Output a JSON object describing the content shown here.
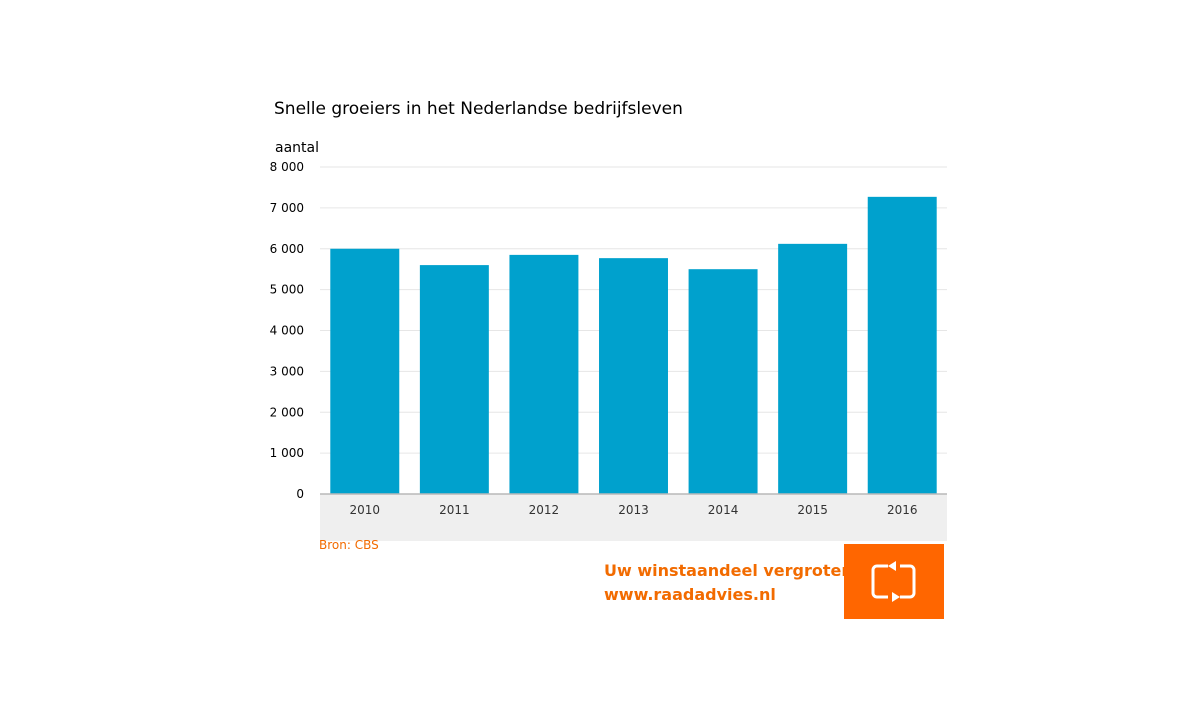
{
  "chart_data": {
    "type": "bar",
    "title": "Snelle groeiers in het Nederlandse bedrijfsleven",
    "ylabel": "aantal",
    "xlabel": "",
    "categories": [
      "2010",
      "2011",
      "2012",
      "2013",
      "2014",
      "2015",
      "2016"
    ],
    "values": [
      6000,
      5600,
      5850,
      5770,
      5500,
      6120,
      7270
    ],
    "ylim": [
      0,
      8000
    ],
    "yticks": [
      0,
      1000,
      2000,
      3000,
      4000,
      5000,
      6000,
      7000,
      8000
    ],
    "ytick_labels": [
      "0",
      "1 000",
      "2 000",
      "3 000",
      "4 000",
      "5 000",
      "6 000",
      "7 000",
      "8 000"
    ],
    "grid": true,
    "bar_color": "#00a1cd"
  },
  "source": "Bron: CBS",
  "promo": {
    "line1": "Uw winstaandeel vergroten?",
    "line2": "www.raadadvies.nl"
  },
  "colors": {
    "accent": "#f26b00",
    "logo_bg": "#ff6600"
  },
  "logo": {
    "icon": "cycle-arrows-icon"
  }
}
